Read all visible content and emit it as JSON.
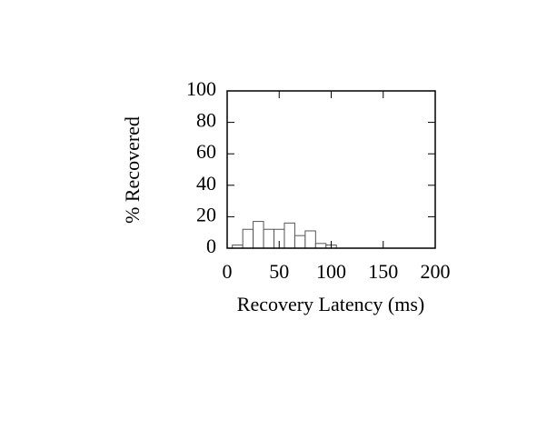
{
  "chart_data": {
    "type": "histogram",
    "xlabel": "Recovery Latency (ms)",
    "ylabel": "% Recovered",
    "bins": [
      5,
      15,
      25,
      35,
      45,
      55,
      65,
      75,
      85,
      95,
      105
    ],
    "values": [
      2,
      12,
      17,
      12,
      12,
      16,
      8,
      11,
      3,
      2
    ],
    "color": "#ffffff",
    "edgecolor": "#555555",
    "xlim": [
      0,
      200
    ],
    "xticks": [
      0,
      50,
      100,
      150,
      200
    ],
    "ylim": [
      0,
      100
    ],
    "yticks": [
      0,
      20,
      40,
      60,
      80,
      100
    ]
  }
}
